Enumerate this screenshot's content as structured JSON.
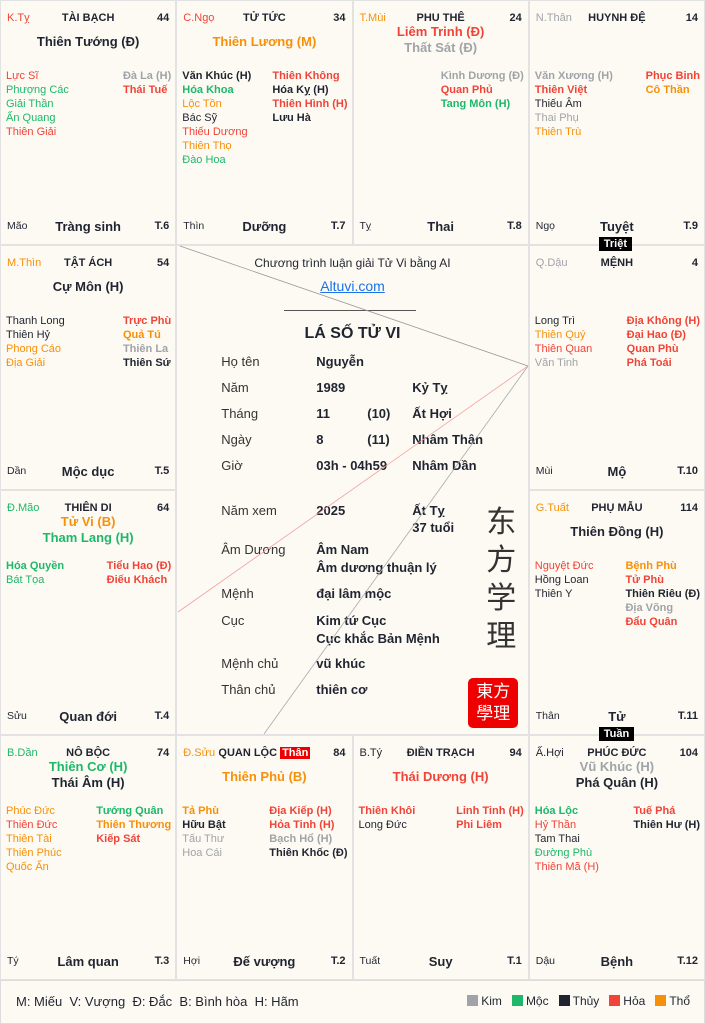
{
  "element_colors": {
    "k": "#a0a3a8",
    "m": "#1db86a",
    "t": "#1f2430",
    "h": "#f04438",
    "o": "#f79009"
  },
  "palaces": [
    {
      "can": "K.Tỵ",
      "cc": "h",
      "name": "TÀI BẠCH",
      "age": "44",
      "main": [
        {
          "n": "Thiên Tướng (Đ)",
          "c": "t"
        }
      ],
      "left": [
        {
          "n": "Lực Sĩ",
          "c": "h"
        },
        {
          "n": "Phượng Các",
          "c": "m"
        },
        {
          "n": "Giải Thần",
          "c": "m"
        },
        {
          "n": "Ấn Quang",
          "c": "m"
        },
        {
          "n": "Thiên Giải",
          "c": "h"
        }
      ],
      "right": [
        {
          "n": "Đà La (H)",
          "c": "k",
          "b": 1
        },
        {
          "n": "Thái Tuế",
          "c": "h",
          "b": 1
        }
      ],
      "branch": "Mão",
      "stage": "Tràng sinh",
      "month": "T.6"
    },
    {
      "can": "C.Ngọ",
      "cc": "h",
      "name": "TỬ TỨC",
      "age": "34",
      "main": [
        {
          "n": "Thiên Lương (M)",
          "c": "o"
        }
      ],
      "left": [
        {
          "n": "Văn Khúc (H)",
          "c": "t",
          "b": 1
        },
        {
          "n": "Hóa Khoa",
          "c": "m",
          "b": 1
        },
        {
          "n": "Lộc Tồn",
          "c": "o"
        },
        {
          "n": "Bác Sỹ",
          "c": "t"
        },
        {
          "n": "Thiếu Dương",
          "c": "h"
        },
        {
          "n": "Thiên Thọ",
          "c": "o"
        },
        {
          "n": "Đào Hoa",
          "c": "m"
        }
      ],
      "right": [
        {
          "n": "Thiên Không",
          "c": "h",
          "b": 1
        },
        {
          "n": "Hóa Kỵ (H)",
          "c": "t",
          "b": 1
        },
        {
          "n": "Thiên Hình (H)",
          "c": "h",
          "b": 1
        },
        {
          "n": "Lưu Hà",
          "c": "t",
          "b": 1
        }
      ],
      "branch": "Thìn",
      "stage": "Dưỡng",
      "month": "T.7"
    },
    {
      "can": "T.Mùi",
      "cc": "o",
      "name": "PHU THÊ",
      "age": "24",
      "main": [
        {
          "n": "Liêm Trinh (Đ)",
          "c": "h"
        },
        {
          "n": "Thất Sát (Đ)",
          "c": "k"
        }
      ],
      "left": [],
      "right": [
        {
          "n": "Kình Dương (Đ)",
          "c": "k",
          "b": 1
        },
        {
          "n": "Quan Phủ",
          "c": "h",
          "b": 1
        },
        {
          "n": "Tang Môn (H)",
          "c": "m",
          "b": 1
        }
      ],
      "branch": "Tỵ",
      "stage": "Thai",
      "month": "T.8"
    },
    {
      "can": "N.Thân",
      "cc": "k",
      "name": "HUYNH ĐỆ",
      "age": "14",
      "main": [],
      "left": [
        {
          "n": "Văn Xương (H)",
          "c": "k",
          "b": 1
        },
        {
          "n": "Thiên Việt",
          "c": "h",
          "b": 1
        },
        {
          "n": "Thiếu Âm",
          "c": "t"
        },
        {
          "n": "Thai Phụ",
          "c": "k"
        },
        {
          "n": "Thiên Trù",
          "c": "o"
        }
      ],
      "right": [
        {
          "n": "Phục Binh",
          "c": "h",
          "b": 1
        },
        {
          "n": "Cô Thần",
          "c": "o",
          "b": 1
        }
      ],
      "branch": "Ngọ",
      "stage": "Tuyệt",
      "month": "T.9",
      "badge": "Triệt"
    },
    {
      "can": "M.Thìn",
      "cc": "o",
      "name": "TẬT ÁCH",
      "age": "54",
      "main": [
        {
          "n": "Cự Môn (H)",
          "c": "t"
        }
      ],
      "left": [
        {
          "n": "Thanh Long",
          "c": "t"
        },
        {
          "n": "Thiên Hỷ",
          "c": "t"
        },
        {
          "n": "Phong Cáo",
          "c": "o"
        },
        {
          "n": "Địa Giải",
          "c": "o"
        }
      ],
      "right": [
        {
          "n": "Trực Phù",
          "c": "h",
          "b": 1
        },
        {
          "n": "Quả Tú",
          "c": "o",
          "b": 1
        },
        {
          "n": "Thiên La",
          "c": "k",
          "b": 1
        },
        {
          "n": "Thiên Sứ",
          "c": "t",
          "b": 1
        }
      ],
      "branch": "Dần",
      "stage": "Mộc dục",
      "month": "T.5"
    },
    {
      "can": "Q.Dậu",
      "cc": "k",
      "name": "MỆNH",
      "age": "4",
      "main": [],
      "left": [
        {
          "n": "Long Trì",
          "c": "t"
        },
        {
          "n": "Thiên Quý",
          "c": "o"
        },
        {
          "n": "Thiên Quan",
          "c": "h"
        },
        {
          "n": "Văn Tinh",
          "c": "k"
        }
      ],
      "right": [
        {
          "n": "Địa Không (H)",
          "c": "h",
          "b": 1
        },
        {
          "n": "Đại Hao (Đ)",
          "c": "h",
          "b": 1
        },
        {
          "n": "Quan Phù",
          "c": "h",
          "b": 1
        },
        {
          "n": "Phá Toái",
          "c": "h",
          "b": 1
        }
      ],
      "branch": "Mùi",
      "stage": "Mộ",
      "month": "T.10"
    },
    {
      "can": "Đ.Mão",
      "cc": "m",
      "name": "THIÊN DI",
      "age": "64",
      "main": [
        {
          "n": "Tử Vi (B)",
          "c": "o"
        },
        {
          "n": "Tham Lang (H)",
          "c": "m"
        }
      ],
      "left": [
        {
          "n": "Hóa Quyền",
          "c": "m",
          "b": 1
        },
        {
          "n": "Bát Tọa",
          "c": "m"
        }
      ],
      "right": [
        {
          "n": "Tiểu Hao (Đ)",
          "c": "h",
          "b": 1
        },
        {
          "n": "Điếu Khách",
          "c": "h",
          "b": 1
        }
      ],
      "branch": "Sửu",
      "stage": "Quan đới",
      "month": "T.4"
    },
    {
      "can": "G.Tuất",
      "cc": "o",
      "name": "PHỤ MẪU",
      "age": "114",
      "main": [
        {
          "n": "Thiên Đồng (H)",
          "c": "t"
        }
      ],
      "left": [
        {
          "n": "Nguyệt Đức",
          "c": "h"
        },
        {
          "n": "Hồng Loan",
          "c": "t"
        },
        {
          "n": "Thiên Y",
          "c": "t"
        }
      ],
      "right": [
        {
          "n": "Bệnh Phù",
          "c": "o",
          "b": 1
        },
        {
          "n": "Tử Phù",
          "c": "h",
          "b": 1
        },
        {
          "n": "Thiên Riêu (Đ)",
          "c": "t",
          "b": 1
        },
        {
          "n": "Địa Võng",
          "c": "k",
          "b": 1
        },
        {
          "n": "Đẩu Quân",
          "c": "h",
          "b": 1
        }
      ],
      "branch": "Thân",
      "stage": "Tử",
      "month": "T.11",
      "badge": "Tuần"
    },
    {
      "can": "B.Dần",
      "cc": "m",
      "name": "NÔ BỘC",
      "age": "74",
      "main": [
        {
          "n": "Thiên Cơ (H)",
          "c": "m"
        },
        {
          "n": "Thái Âm (H)",
          "c": "t"
        }
      ],
      "left": [
        {
          "n": "Phúc Đức",
          "c": "o"
        },
        {
          "n": "Thiên Đức",
          "c": "h"
        },
        {
          "n": "Thiên Tài",
          "c": "o"
        },
        {
          "n": "Thiên Phúc",
          "c": "o"
        },
        {
          "n": "Quốc Ấn",
          "c": "o"
        }
      ],
      "right": [
        {
          "n": "Tướng Quân",
          "c": "m",
          "b": 1
        },
        {
          "n": "Thiên Thương",
          "c": "o",
          "b": 1
        },
        {
          "n": "Kiếp Sát",
          "c": "h",
          "b": 1
        }
      ],
      "branch": "Tý",
      "stage": "Lâm quan",
      "month": "T.3"
    },
    {
      "can": "Đ.Sửu",
      "cc": "o",
      "name": "QUAN LỘC",
      "than": "Thân",
      "age": "84",
      "main": [
        {
          "n": "Thiên Phủ (B)",
          "c": "o"
        }
      ],
      "left": [
        {
          "n": "Tả Phù",
          "c": "o",
          "b": 1
        },
        {
          "n": "Hữu Bật",
          "c": "t",
          "b": 1
        },
        {
          "n": "Tấu Thư",
          "c": "k"
        },
        {
          "n": "Hoa Cái",
          "c": "k"
        }
      ],
      "right": [
        {
          "n": "Địa Kiếp (H)",
          "c": "h",
          "b": 1
        },
        {
          "n": "Hỏa Tinh (H)",
          "c": "h",
          "b": 1
        },
        {
          "n": "Bạch Hổ (H)",
          "c": "k",
          "b": 1
        },
        {
          "n": "Thiên Khốc (Đ)",
          "c": "t",
          "b": 1
        }
      ],
      "branch": "Hợi",
      "stage": "Đế vượng",
      "month": "T.2"
    },
    {
      "can": "B.Tý",
      "cc": "t",
      "name": "ĐIỀN TRẠCH",
      "age": "94",
      "main": [
        {
          "n": "Thái Dương (H)",
          "c": "h"
        }
      ],
      "left": [
        {
          "n": "Thiên Khôi",
          "c": "h",
          "b": 1
        },
        {
          "n": "Long Đức",
          "c": "t"
        }
      ],
      "right": [
        {
          "n": "Linh Tinh (H)",
          "c": "h",
          "b": 1
        },
        {
          "n": "Phi Liêm",
          "c": "h",
          "b": 1
        }
      ],
      "branch": "Tuất",
      "stage": "Suy",
      "month": "T.1"
    },
    {
      "can": "Ấ.Hợi",
      "cc": "t",
      "name": "PHÚC ĐỨC",
      "age": "104",
      "main": [
        {
          "n": "Vũ Khúc (H)",
          "c": "k"
        },
        {
          "n": "Phá Quân (H)",
          "c": "t"
        }
      ],
      "left": [
        {
          "n": "Hóa Lộc",
          "c": "m",
          "b": 1
        },
        {
          "n": "Hỷ Thần",
          "c": "h"
        },
        {
          "n": "Tam Thai",
          "c": "t"
        },
        {
          "n": "Đường Phù",
          "c": "m"
        },
        {
          "n": "Thiên Mã (H)",
          "c": "h"
        }
      ],
      "right": [
        {
          "n": "Tuế Phá",
          "c": "h",
          "b": 1
        },
        {
          "n": "Thiên Hư (H)",
          "c": "t",
          "b": 1
        }
      ],
      "branch": "Dậu",
      "stage": "Bệnh",
      "month": "T.12"
    }
  ],
  "center": {
    "subtitle": "Chương trình luận giải Tử Vi bằng AI",
    "link": "Altuvi.com",
    "title": "LÁ SỐ TỬ VI",
    "rows": [
      {
        "label": "Họ tên",
        "value": "Nguyễn"
      },
      {
        "label": "Năm",
        "value": "1989",
        "extra": "Kỷ Tỵ"
      },
      {
        "label": "Tháng",
        "value": "11",
        "lunar": "(10)",
        "extra": "Ất Hợi"
      },
      {
        "label": "Ngày",
        "value": "8",
        "lunar": "(11)",
        "extra": "Nhâm Thân"
      },
      {
        "label": "Giờ",
        "value": "03h - 04h59",
        "extra": "Nhâm Dần"
      },
      {
        "label": "Năm xem",
        "value": "2025",
        "extra": "Ất Tỵ",
        "extra2": "37 tuổi"
      },
      {
        "label": "Âm Dương",
        "value": "Âm Nam",
        "value2": "Âm dương thuận lý"
      },
      {
        "label": "Mệnh",
        "value": "đại lâm mộc"
      },
      {
        "label": "Cục",
        "value": "Kim tứ Cục",
        "value2": "Cục khắc Bản Mệnh"
      },
      {
        "label": "Mệnh chủ",
        "value": "vũ khúc"
      },
      {
        "label": "Thân chủ",
        "value": "thiên cơ"
      }
    ],
    "calligraphy": [
      "东",
      "方",
      "学",
      "理"
    ],
    "seal": "東方學理"
  },
  "legend": {
    "brightness": "M: Miếu  V: Vượng  Đ: Đắc  B: Bình hòa  H: Hãm",
    "elements": [
      {
        "label": "Kim",
        "c": "k"
      },
      {
        "label": "Mộc",
        "c": "m"
      },
      {
        "label": "Thủy",
        "c": "t"
      },
      {
        "label": "Hỏa",
        "c": "h"
      },
      {
        "label": "Thổ",
        "c": "o"
      }
    ]
  }
}
